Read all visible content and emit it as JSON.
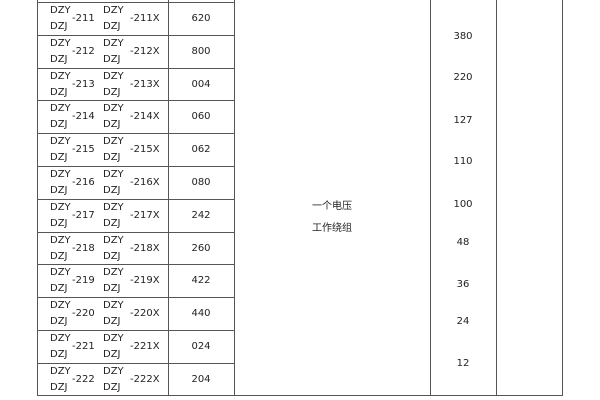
{
  "rows": [
    {
      "p1": "DZY",
      "p2": "DZJ",
      "n": "-211",
      "q1": "DZY",
      "q2": "DZJ",
      "x": "-211X",
      "code": "620"
    },
    {
      "p1": "DZY",
      "p2": "DZJ",
      "n": "-212",
      "q1": "DZY",
      "q2": "DZJ",
      "x": "-212X",
      "code": "800"
    },
    {
      "p1": "DZY",
      "p2": "DZJ",
      "n": "-213",
      "q1": "DZY",
      "q2": "DZJ",
      "x": "-213X",
      "code": "004"
    },
    {
      "p1": "DZY",
      "p2": "DZJ",
      "n": "-214",
      "q1": "DZY",
      "q2": "DZJ",
      "x": "-214X",
      "code": "060"
    },
    {
      "p1": "DZY",
      "p2": "DZJ",
      "n": "-215",
      "q1": "DZY",
      "q2": "DZJ",
      "x": "-215X",
      "code": "062"
    },
    {
      "p1": "DZY",
      "p2": "DZJ",
      "n": "-216",
      "q1": "DZY",
      "q2": "DZJ",
      "x": "-216X",
      "code": "080"
    },
    {
      "p1": "DZY",
      "p2": "DZJ",
      "n": "-217",
      "q1": "DZY",
      "q2": "DZJ",
      "x": "-217X",
      "code": "242"
    },
    {
      "p1": "DZY",
      "p2": "DZJ",
      "n": "-218",
      "q1": "DZY",
      "q2": "DZJ",
      "x": "-218X",
      "code": "260"
    },
    {
      "p1": "DZY",
      "p2": "DZJ",
      "n": "-219",
      "q1": "DZY",
      "q2": "DZJ",
      "x": "-219X",
      "code": "422"
    },
    {
      "p1": "DZY",
      "p2": "DZJ",
      "n": "-220",
      "q1": "DZY",
      "q2": "DZJ",
      "x": "-220X",
      "code": "440"
    },
    {
      "p1": "DZY",
      "p2": "DZJ",
      "n": "-221",
      "q1": "DZY",
      "q2": "DZJ",
      "x": "-221X",
      "code": "024"
    },
    {
      "p1": "DZY",
      "p2": "DZJ",
      "n": "-222",
      "q1": "DZY",
      "q2": "DZJ",
      "x": "-222X",
      "code": "204"
    }
  ],
  "winding": {
    "line1": "一个电压",
    "line2": "工作绕组"
  },
  "voltages": [
    "380",
    "220",
    "127",
    "110",
    "100",
    "48",
    "36",
    "24",
    "12"
  ]
}
